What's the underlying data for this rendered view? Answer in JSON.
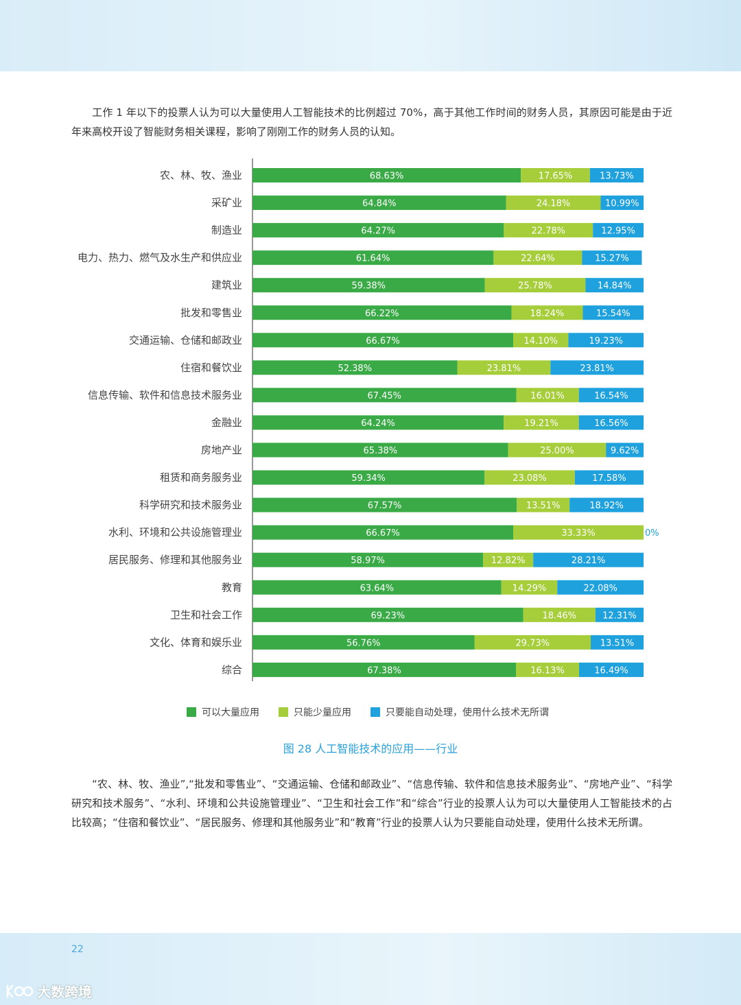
{
  "intro_text": "工作 1 年以下的投票人认为可以大量使用人工智能技术的比例超过 70%，高于其他工作时间的财务人员，其原因可能是由于近年来高校开设了智能财务相关课程，影响了刚刚工作的财务人员的认知。",
  "chart_data": {
    "type": "bar",
    "orientation": "horizontal",
    "stacked": true,
    "normalized_percent": true,
    "categories": [
      "农、林、牧、渔业",
      "采矿业",
      "制造业",
      "电力、热力、燃气及水生产和供应业",
      "建筑业",
      "批发和零售业",
      "交通运输、仓储和邮政业",
      "住宿和餐饮业",
      "信息传输、软件和信息技术服务业",
      "金融业",
      "房地产业",
      "租赁和商务服务业",
      "科学研究和技术服务业",
      "水利、环境和公共设施管理业",
      "居民服务、修理和其他服务业",
      "教育",
      "卫生和社会工作",
      "文化、体育和娱乐业",
      "综合"
    ],
    "series": [
      {
        "name": "可以大量应用",
        "color": "#3aaa47",
        "values": [
          68.63,
          64.84,
          64.27,
          61.64,
          59.38,
          66.22,
          66.67,
          52.38,
          67.45,
          64.24,
          65.38,
          59.34,
          67.57,
          66.67,
          58.97,
          63.64,
          69.23,
          56.76,
          67.38
        ],
        "labels": [
          "68.63%",
          "64.84%",
          "64.27%",
          "61.64%",
          "59.38%",
          "66.22%",
          "66.67%",
          "52.38%",
          "67.45%",
          "64.24%",
          "65.38%",
          "59.34%",
          "67.57%",
          "66.67%",
          "58.97%",
          "63.64%",
          "69.23%",
          "56.76%",
          "67.38%"
        ]
      },
      {
        "name": "只能少量应用",
        "color": "#a6cd3a",
        "values": [
          17.65,
          24.18,
          22.78,
          22.64,
          25.78,
          18.24,
          14.1,
          23.81,
          16.01,
          19.21,
          25.0,
          23.08,
          13.51,
          33.33,
          12.82,
          14.29,
          18.46,
          29.73,
          16.13
        ],
        "labels": [
          "17.65%",
          "24.18%",
          "22.78%",
          "22.64%",
          "25.78%",
          "18.24%",
          "14.10%",
          "23.81%",
          "16.01%",
          "19.21%",
          "25.00%",
          "23.08%",
          "13.51%",
          "33.33%",
          "12.82%",
          "14.29%",
          "18.46%",
          "29.73%",
          "16.13%"
        ]
      },
      {
        "name": "只要能自动处理，使用什么技术无所谓",
        "color": "#1ea1dc",
        "values": [
          13.73,
          10.99,
          12.95,
          15.27,
          14.84,
          15.54,
          19.23,
          23.81,
          16.54,
          16.56,
          9.62,
          17.58,
          18.92,
          0,
          28.21,
          22.08,
          12.31,
          13.51,
          16.49
        ],
        "labels": [
          "13.73%",
          "10.99%",
          "12.95%",
          "15.27%",
          "14.84%",
          "15.54%",
          "19.23%",
          "23.81%",
          "16.54%",
          "16.56%",
          "9.62%",
          "17.58%",
          "18.92%",
          "0%",
          "28.21%",
          "22.08%",
          "12.31%",
          "13.51%",
          "16.49%"
        ]
      }
    ],
    "legend_position": "bottom",
    "grid": false,
    "caption": "图 28  人工智能技术的应用——行业"
  },
  "outro_text": "“农、林、牧、渔业”,“批发和零售业”、“交通运输、仓储和邮政业”、“信息传输、软件和信息技术服务业”、“房地产业”、“科学研究和技术服务”、“水利、环境和公共设施管理业”、“卫生和社会工作”和“综合”行业的投票人认为可以大量使用人工智能技术的占比较高；“住宿和餐饮业”、“居民服务、修理和其他服务业”和“教育”行业的投票人认为只要能自动处理，使用什么技术无所谓。",
  "page_number": "22",
  "watermark_text": "大数跨境"
}
